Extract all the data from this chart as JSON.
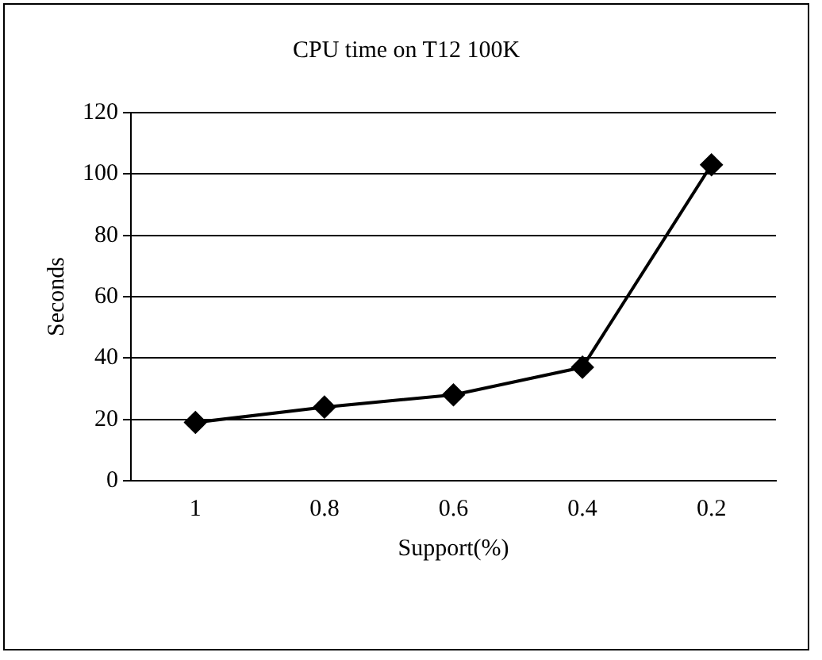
{
  "chart_data": {
    "type": "line",
    "title": "CPU time on T12 100K",
    "xlabel": "Support(%)",
    "ylabel": "Seconds",
    "categories": [
      "1",
      "0.8",
      "0.6",
      "0.4",
      "0.2"
    ],
    "series": [
      {
        "color": "#000000",
        "values": [
          19,
          24,
          28,
          37,
          103
        ]
      }
    ],
    "ylim": [
      0,
      120
    ],
    "yticks": [
      0,
      20,
      40,
      60,
      80,
      100,
      120
    ],
    "grid": "y",
    "legend": false,
    "marker": "diamond",
    "line_style": "solid"
  }
}
